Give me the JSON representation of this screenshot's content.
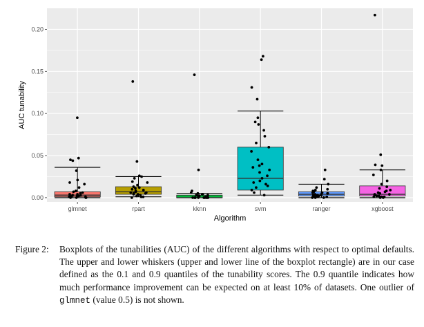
{
  "chart_data": {
    "type": "boxplot",
    "xlabel": "Algorithm",
    "ylabel": "AUC tunability",
    "ylim": [
      -0.005,
      0.225
    ],
    "yticks": [
      0.0,
      0.05,
      0.1,
      0.15,
      0.2
    ],
    "ytick_labels": [
      "0.00",
      "0.05",
      "0.10",
      "0.15",
      "0.20"
    ],
    "grid": true,
    "background": "#ebebeb",
    "categories": [
      "glmnet",
      "rpart",
      "kknn",
      "svm",
      "ranger",
      "xgboost"
    ],
    "boxes": [
      {
        "name": "glmnet",
        "color": "#f8766d",
        "q1": 0.001,
        "median": 0.003,
        "q3": 0.007,
        "whisker_low": 0.0,
        "whisker_high": 0.036,
        "points": [
          0.095,
          0.047,
          0.045,
          0.044,
          0.032,
          0.021,
          0.018,
          0.016,
          0.012,
          0.008,
          0.007,
          0.006,
          0.005,
          0.004,
          0.004,
          0.003,
          0.003,
          0.002,
          0.002,
          0.002,
          0.001,
          0.001,
          0.001,
          0.0,
          0.0,
          0.0,
          0.0
        ]
      },
      {
        "name": "rpart",
        "color": "#b79f00",
        "q1": 0.004,
        "median": 0.007,
        "q3": 0.013,
        "whisker_low": 0.001,
        "whisker_high": 0.025,
        "points": [
          0.138,
          0.043,
          0.026,
          0.025,
          0.023,
          0.019,
          0.018,
          0.015,
          0.013,
          0.012,
          0.011,
          0.01,
          0.009,
          0.008,
          0.007,
          0.006,
          0.006,
          0.005,
          0.005,
          0.004,
          0.004,
          0.003,
          0.002,
          0.001,
          0.001,
          0.0
        ]
      },
      {
        "name": "kknn",
        "color": "#00ba38",
        "q1": 0.0,
        "median": 0.0,
        "q3": 0.003,
        "whisker_low": 0.0,
        "whisker_high": 0.005,
        "points": [
          0.146,
          0.033,
          0.008,
          0.006,
          0.005,
          0.004,
          0.004,
          0.003,
          0.003,
          0.002,
          0.002,
          0.001,
          0.001,
          0.001,
          0.0,
          0.0,
          0.0,
          0.0,
          0.0,
          0.0,
          0.0,
          0.0,
          0.0,
          0.0,
          0.0,
          0.0
        ]
      },
      {
        "name": "svm",
        "color": "#00bfc4",
        "q1": 0.009,
        "median": 0.023,
        "q3": 0.06,
        "whisker_low": 0.003,
        "whisker_high": 0.103,
        "points": [
          0.168,
          0.164,
          0.131,
          0.117,
          0.095,
          0.09,
          0.087,
          0.08,
          0.073,
          0.065,
          0.06,
          0.055,
          0.045,
          0.04,
          0.038,
          0.036,
          0.033,
          0.03,
          0.026,
          0.023,
          0.02,
          0.018,
          0.016,
          0.014,
          0.012,
          0.009,
          0.006,
          0.003
        ]
      },
      {
        "name": "ranger",
        "color": "#619cff",
        "q1": 0.002,
        "median": 0.004,
        "q3": 0.007,
        "whisker_low": 0.0,
        "whisker_high": 0.016,
        "points": [
          0.033,
          0.022,
          0.016,
          0.012,
          0.01,
          0.009,
          0.008,
          0.007,
          0.006,
          0.006,
          0.005,
          0.005,
          0.004,
          0.004,
          0.003,
          0.003,
          0.003,
          0.002,
          0.002,
          0.002,
          0.001,
          0.001,
          0.001,
          0.0,
          0.0,
          0.0
        ]
      },
      {
        "name": "xgboost",
        "color": "#f564e3",
        "q1": 0.002,
        "median": 0.004,
        "q3": 0.014,
        "whisker_low": 0.0,
        "whisker_high": 0.033,
        "points": [
          0.217,
          0.051,
          0.039,
          0.038,
          0.033,
          0.027,
          0.02,
          0.016,
          0.013,
          0.011,
          0.009,
          0.008,
          0.007,
          0.006,
          0.005,
          0.004,
          0.004,
          0.003,
          0.003,
          0.002,
          0.002,
          0.001,
          0.001,
          0.001,
          0.0,
          0.0
        ]
      }
    ]
  },
  "caption": {
    "label": "Figure 2:",
    "text_before_code1": "Boxplots of the tunabilities (AUC) of the different algorithms with respect to optimal defaults.  The upper and lower whiskers (upper and lower line of the boxplot rectangle) are in our case defined as the 0.1 and 0.9 quantiles of the tunability scores. The 0.9 quantile indicates how much performance improvement can be expected on at least 10% of datasets. One outlier of ",
    "code1": "glmnet",
    "text_after_code1": " (value 0.5) is not shown."
  }
}
